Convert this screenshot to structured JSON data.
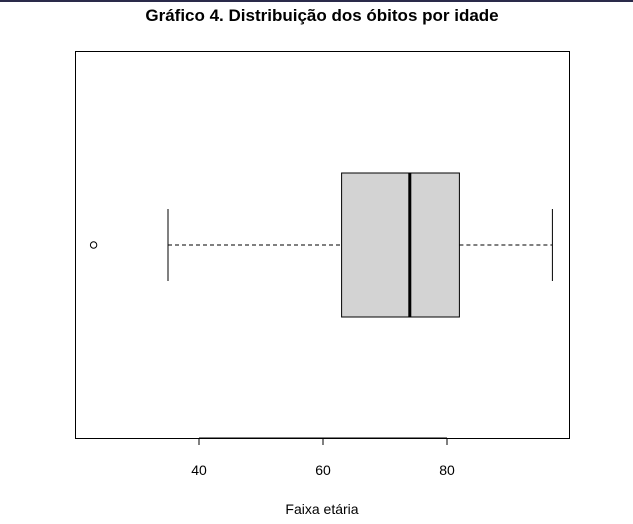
{
  "chart_data": {
    "type": "boxplot",
    "orientation": "horizontal",
    "title": "Gráfico 4. Distribuição dos óbitos por idade",
    "xlabel": "Faixa etária",
    "ylabel": "",
    "xlim": [
      20,
      100
    ],
    "xticks": [
      40,
      60,
      80
    ],
    "xtick_labels": [
      "40",
      "60",
      "80"
    ],
    "grid": false,
    "box": {
      "whisker_low": 35,
      "q1": 63,
      "median": 74,
      "q3": 82,
      "whisker_high": 97,
      "outliers": [
        23
      ]
    },
    "colors": {
      "box_fill": "#d3d3d3",
      "stroke": "#000000"
    }
  }
}
